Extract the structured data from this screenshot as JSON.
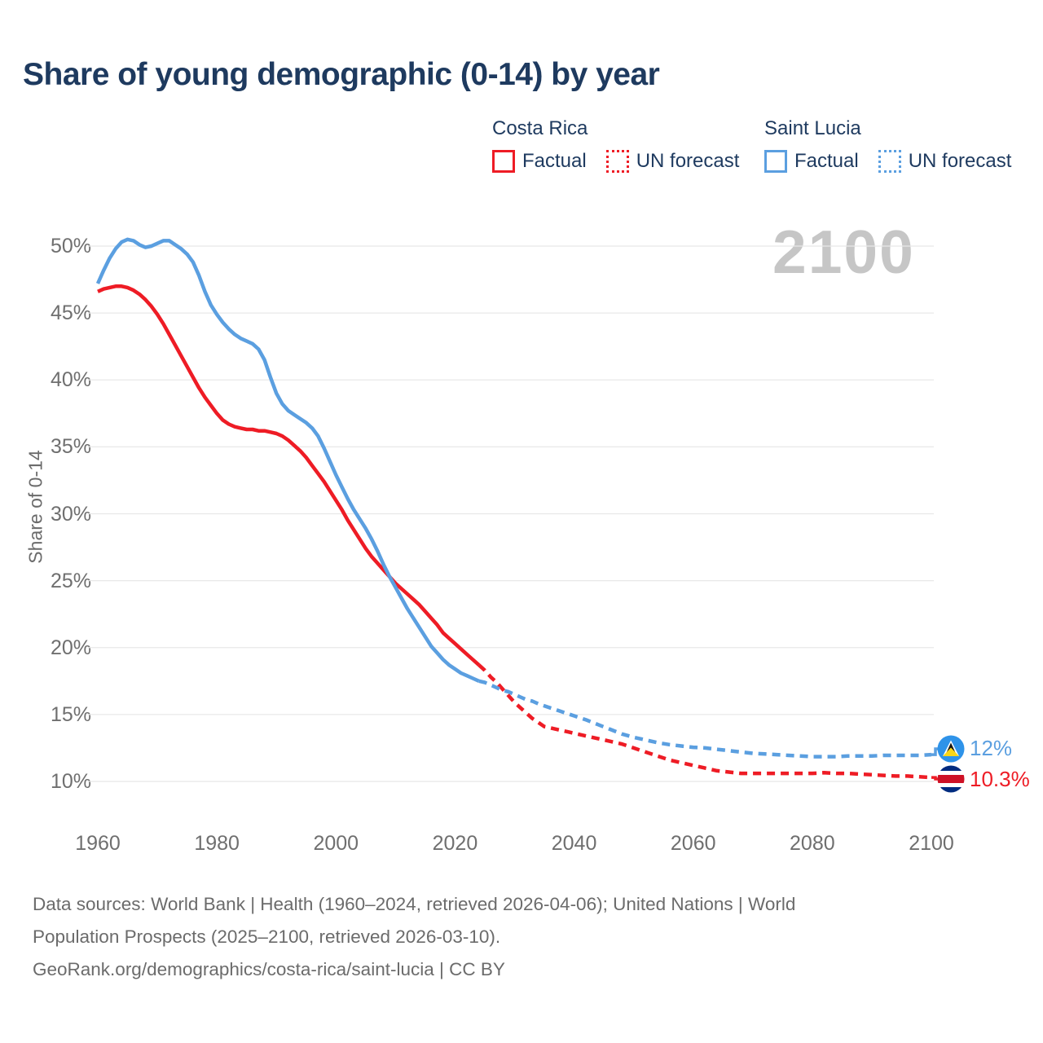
{
  "title": "Share of young demographic (0-14) by year",
  "watermark": "2100",
  "legend": {
    "groups": [
      {
        "country": "Costa Rica",
        "items": [
          {
            "label": "Factual",
            "style": "solid",
            "color": "#ee1c25"
          },
          {
            "label": "UN forecast",
            "style": "dotted",
            "color": "#ee1c25"
          }
        ]
      },
      {
        "country": "Saint Lucia",
        "items": [
          {
            "label": "Factual",
            "style": "solid",
            "color": "#5b9fe0"
          },
          {
            "label": "UN forecast",
            "style": "dotted",
            "color": "#5b9fe0"
          }
        ]
      }
    ]
  },
  "chart_data": {
    "type": "line",
    "title": "Share of young demographic (0-14) by year",
    "xlabel": "",
    "ylabel": "Share of 0-14",
    "grid": true,
    "legend_position": "top-right",
    "xlim": [
      1960,
      2100
    ],
    "ylim": [
      10,
      50
    ],
    "x_ticks": [
      {
        "label": "1960",
        "value": 1960
      },
      {
        "label": "1980",
        "value": 1980
      },
      {
        "label": "2000",
        "value": 2000
      },
      {
        "label": "2020",
        "value": 2020
      },
      {
        "label": "2040",
        "value": 2040
      },
      {
        "label": "2060",
        "value": 2060
      },
      {
        "label": "2080",
        "value": 2080
      },
      {
        "label": "2100",
        "value": 2100
      }
    ],
    "y_ticks": [
      {
        "label": "50%",
        "value": 50
      },
      {
        "label": "45%",
        "value": 45
      },
      {
        "label": "40%",
        "value": 40
      },
      {
        "label": "35%",
        "value": 35
      },
      {
        "label": "30%",
        "value": 30
      },
      {
        "label": "25%",
        "value": 25
      },
      {
        "label": "20%",
        "value": 20
      },
      {
        "label": "15%",
        "value": 15
      },
      {
        "label": "10%",
        "value": 10
      }
    ],
    "series": [
      {
        "name": "Costa Rica — Factual",
        "color": "#ee1c25",
        "style": "solid",
        "points": [
          [
            1960,
            46.6
          ],
          [
            1961,
            46.8
          ],
          [
            1962,
            46.9
          ],
          [
            1963,
            47.0
          ],
          [
            1964,
            47.0
          ],
          [
            1965,
            46.9
          ],
          [
            1966,
            46.7
          ],
          [
            1967,
            46.4
          ],
          [
            1968,
            46.0
          ],
          [
            1969,
            45.5
          ],
          [
            1970,
            44.9
          ],
          [
            1971,
            44.2
          ],
          [
            1972,
            43.4
          ],
          [
            1973,
            42.6
          ],
          [
            1974,
            41.8
          ],
          [
            1975,
            41.0
          ],
          [
            1976,
            40.2
          ],
          [
            1977,
            39.4
          ],
          [
            1978,
            38.7
          ],
          [
            1979,
            38.1
          ],
          [
            1980,
            37.5
          ],
          [
            1981,
            37.0
          ],
          [
            1982,
            36.7
          ],
          [
            1983,
            36.5
          ],
          [
            1984,
            36.4
          ],
          [
            1985,
            36.3
          ],
          [
            1986,
            36.3
          ],
          [
            1987,
            36.2
          ],
          [
            1988,
            36.2
          ],
          [
            1989,
            36.1
          ],
          [
            1990,
            36.0
          ],
          [
            1991,
            35.8
          ],
          [
            1992,
            35.5
          ],
          [
            1993,
            35.1
          ],
          [
            1994,
            34.7
          ],
          [
            1995,
            34.2
          ],
          [
            1996,
            33.6
          ],
          [
            1997,
            33.0
          ],
          [
            1998,
            32.4
          ],
          [
            1999,
            31.7
          ],
          [
            2000,
            31.0
          ],
          [
            2001,
            30.3
          ],
          [
            2002,
            29.5
          ],
          [
            2003,
            28.8
          ],
          [
            2004,
            28.1
          ],
          [
            2005,
            27.4
          ],
          [
            2006,
            26.8
          ],
          [
            2007,
            26.3
          ],
          [
            2008,
            25.8
          ],
          [
            2009,
            25.3
          ],
          [
            2010,
            24.8
          ],
          [
            2011,
            24.4
          ],
          [
            2012,
            24.0
          ],
          [
            2013,
            23.6
          ],
          [
            2014,
            23.2
          ],
          [
            2015,
            22.7
          ],
          [
            2016,
            22.2
          ],
          [
            2017,
            21.7
          ],
          [
            2018,
            21.1
          ],
          [
            2019,
            20.7
          ],
          [
            2020,
            20.3
          ],
          [
            2021,
            19.9
          ],
          [
            2022,
            19.5
          ],
          [
            2023,
            19.1
          ],
          [
            2024,
            18.7
          ]
        ]
      },
      {
        "name": "Costa Rica — UN forecast",
        "color": "#ee1c25",
        "style": "dashed",
        "points": [
          [
            2024,
            18.7
          ],
          [
            2025,
            18.3
          ],
          [
            2026,
            17.8
          ],
          [
            2027,
            17.4
          ],
          [
            2028,
            16.9
          ],
          [
            2029,
            16.4
          ],
          [
            2030,
            15.9
          ],
          [
            2031,
            15.5
          ],
          [
            2032,
            15.1
          ],
          [
            2033,
            14.7
          ],
          [
            2034,
            14.4
          ],
          [
            2035,
            14.1
          ],
          [
            2036,
            14.0
          ],
          [
            2037,
            13.9
          ],
          [
            2038,
            13.8
          ],
          [
            2039,
            13.7
          ],
          [
            2040,
            13.6
          ],
          [
            2042,
            13.4
          ],
          [
            2044,
            13.2
          ],
          [
            2046,
            13.0
          ],
          [
            2048,
            12.8
          ],
          [
            2050,
            12.5
          ],
          [
            2052,
            12.2
          ],
          [
            2054,
            11.9
          ],
          [
            2056,
            11.6
          ],
          [
            2058,
            11.4
          ],
          [
            2060,
            11.2
          ],
          [
            2062,
            11.0
          ],
          [
            2064,
            10.8
          ],
          [
            2066,
            10.7
          ],
          [
            2068,
            10.6
          ],
          [
            2070,
            10.6
          ],
          [
            2072,
            10.6
          ],
          [
            2074,
            10.6
          ],
          [
            2076,
            10.6
          ],
          [
            2078,
            10.6
          ],
          [
            2080,
            10.6
          ],
          [
            2082,
            10.65
          ],
          [
            2084,
            10.6
          ],
          [
            2086,
            10.6
          ],
          [
            2088,
            10.55
          ],
          [
            2090,
            10.5
          ],
          [
            2092,
            10.45
          ],
          [
            2094,
            10.4
          ],
          [
            2096,
            10.4
          ],
          [
            2098,
            10.35
          ],
          [
            2100,
            10.3
          ]
        ]
      },
      {
        "name": "Saint Lucia — Factual",
        "color": "#5b9fe0",
        "style": "solid",
        "points": [
          [
            1960,
            47.2
          ],
          [
            1961,
            48.2
          ],
          [
            1962,
            49.1
          ],
          [
            1963,
            49.8
          ],
          [
            1964,
            50.3
          ],
          [
            1965,
            50.5
          ],
          [
            1966,
            50.4
          ],
          [
            1967,
            50.1
          ],
          [
            1968,
            49.9
          ],
          [
            1969,
            50.0
          ],
          [
            1970,
            50.2
          ],
          [
            1971,
            50.4
          ],
          [
            1972,
            50.4
          ],
          [
            1973,
            50.1
          ],
          [
            1974,
            49.8
          ],
          [
            1975,
            49.4
          ],
          [
            1976,
            48.8
          ],
          [
            1977,
            47.8
          ],
          [
            1978,
            46.6
          ],
          [
            1979,
            45.6
          ],
          [
            1980,
            44.9
          ],
          [
            1981,
            44.3
          ],
          [
            1982,
            43.8
          ],
          [
            1983,
            43.4
          ],
          [
            1984,
            43.1
          ],
          [
            1985,
            42.9
          ],
          [
            1986,
            42.7
          ],
          [
            1987,
            42.3
          ],
          [
            1988,
            41.5
          ],
          [
            1989,
            40.2
          ],
          [
            1990,
            39.0
          ],
          [
            1991,
            38.2
          ],
          [
            1992,
            37.7
          ],
          [
            1993,
            37.4
          ],
          [
            1994,
            37.1
          ],
          [
            1995,
            36.8
          ],
          [
            1996,
            36.4
          ],
          [
            1997,
            35.8
          ],
          [
            1998,
            34.9
          ],
          [
            1999,
            33.9
          ],
          [
            2000,
            32.9
          ],
          [
            2001,
            32.0
          ],
          [
            2002,
            31.1
          ],
          [
            2003,
            30.3
          ],
          [
            2004,
            29.6
          ],
          [
            2005,
            28.9
          ],
          [
            2006,
            28.1
          ],
          [
            2007,
            27.2
          ],
          [
            2008,
            26.2
          ],
          [
            2009,
            25.3
          ],
          [
            2010,
            24.5
          ],
          [
            2011,
            23.7
          ],
          [
            2012,
            22.9
          ],
          [
            2013,
            22.2
          ],
          [
            2014,
            21.5
          ],
          [
            2015,
            20.8
          ],
          [
            2016,
            20.1
          ],
          [
            2017,
            19.6
          ],
          [
            2018,
            19.1
          ],
          [
            2019,
            18.7
          ],
          [
            2020,
            18.4
          ],
          [
            2021,
            18.1
          ],
          [
            2022,
            17.9
          ],
          [
            2023,
            17.7
          ],
          [
            2024,
            17.5
          ]
        ]
      },
      {
        "name": "Saint Lucia — UN forecast",
        "color": "#5b9fe0",
        "style": "dashed",
        "points": [
          [
            2024,
            17.5
          ],
          [
            2025,
            17.4
          ],
          [
            2026,
            17.2
          ],
          [
            2027,
            17.0
          ],
          [
            2028,
            16.8
          ],
          [
            2029,
            16.7
          ],
          [
            2030,
            16.5
          ],
          [
            2031,
            16.3
          ],
          [
            2032,
            16.1
          ],
          [
            2033,
            16.0
          ],
          [
            2034,
            15.8
          ],
          [
            2035,
            15.65
          ],
          [
            2036,
            15.5
          ],
          [
            2037,
            15.35
          ],
          [
            2038,
            15.2
          ],
          [
            2039,
            15.05
          ],
          [
            2040,
            14.9
          ],
          [
            2042,
            14.6
          ],
          [
            2044,
            14.25
          ],
          [
            2046,
            13.9
          ],
          [
            2048,
            13.55
          ],
          [
            2050,
            13.3
          ],
          [
            2052,
            13.1
          ],
          [
            2054,
            12.9
          ],
          [
            2056,
            12.75
          ],
          [
            2058,
            12.65
          ],
          [
            2060,
            12.55
          ],
          [
            2062,
            12.5
          ],
          [
            2064,
            12.4
          ],
          [
            2066,
            12.3
          ],
          [
            2068,
            12.2
          ],
          [
            2070,
            12.1
          ],
          [
            2072,
            12.05
          ],
          [
            2074,
            12.0
          ],
          [
            2076,
            11.95
          ],
          [
            2078,
            11.9
          ],
          [
            2080,
            11.85
          ],
          [
            2082,
            11.85
          ],
          [
            2084,
            11.85
          ],
          [
            2086,
            11.9
          ],
          [
            2088,
            11.9
          ],
          [
            2090,
            11.9
          ],
          [
            2092,
            11.95
          ],
          [
            2094,
            11.95
          ],
          [
            2096,
            11.95
          ],
          [
            2098,
            11.95
          ],
          [
            2100,
            12.0
          ]
        ]
      }
    ],
    "end_labels": [
      {
        "series_index": 3,
        "country": "Saint Lucia",
        "label": "12%",
        "color": "#5b9fe0"
      },
      {
        "series_index": 1,
        "country": "Costa Rica",
        "label": "10.3%",
        "color": "#ee1c25"
      }
    ]
  },
  "colors": {
    "costa_rica": "#ee1c25",
    "saint_lucia": "#5b9fe0",
    "title_text": "#1e3a5f",
    "tick_text": "#6f6f6f",
    "gridline": "#e8e8e8",
    "watermark": "#c6c6c6",
    "flag_cr_blue": "#002b7f",
    "flag_cr_red": "#ce1126",
    "flag_sl_blue": "#2e93e9",
    "flag_sl_gold": "#f9d616"
  },
  "footer": {
    "lines": [
      "Data sources: World Bank | Health (1960–2024, retrieved 2026-04-06); United Nations | World",
      "Population Prospects (2025–2100, retrieved 2026-03-10).",
      "GeoRank.org/demographics/costa-rica/saint-lucia | CC BY"
    ]
  }
}
